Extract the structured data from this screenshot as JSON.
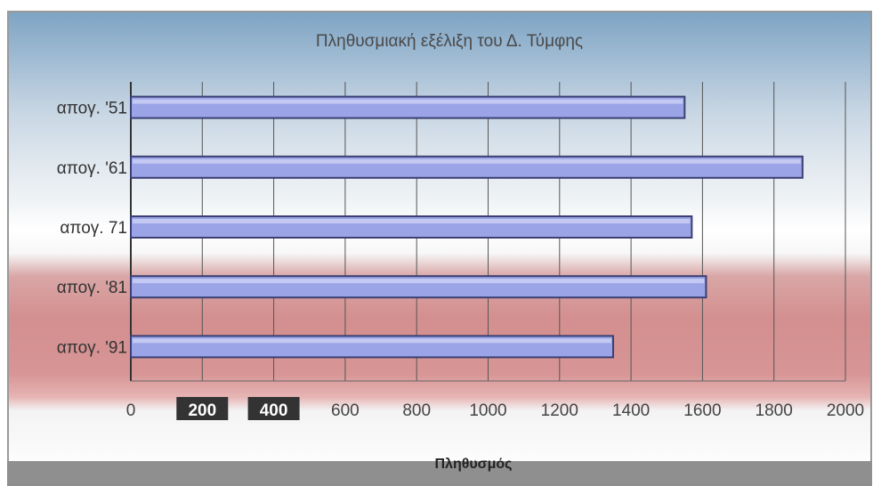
{
  "chart_data": {
    "type": "bar",
    "orientation": "horizontal",
    "title": "Πληθυσμιακή εξέλιξη του Δ. Τύμφης",
    "categories": [
      "απογ. '51",
      "απογ. '61",
      "απογ. 71",
      "απογ. '81",
      "απογ. '91"
    ],
    "values": [
      1550,
      1880,
      1570,
      1610,
      1350
    ],
    "xlim": [
      0,
      2000
    ],
    "xticks": [
      "0",
      "200",
      "400",
      "600",
      "800",
      "1000",
      "1200",
      "1400",
      "1600",
      "1800",
      "2000"
    ],
    "xlabel": "Πληθυσμός",
    "grid": "vertical",
    "colors": {
      "bar": "#9aa4e6",
      "bar_edge": "#3b3f73",
      "grid": "#555555",
      "highlight_tick_bg": "#333333"
    }
  }
}
